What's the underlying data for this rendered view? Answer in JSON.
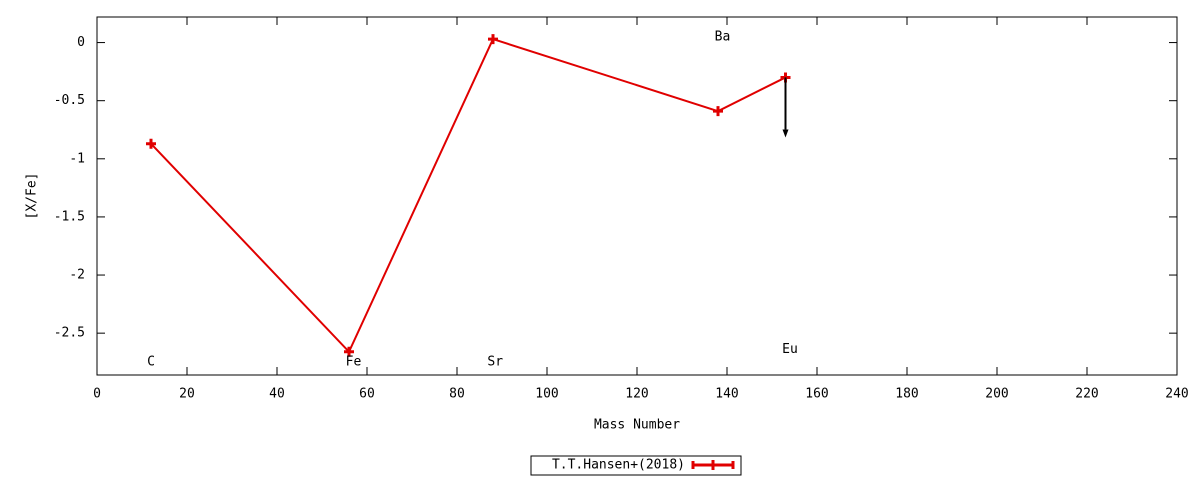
{
  "chart_data": {
    "type": "line",
    "xlabel": "Mass Number",
    "ylabel": "[X/Fe]",
    "xlim": [
      0,
      240
    ],
    "ylim": [
      -2.86,
      0.22
    ],
    "xticks": [
      0,
      20,
      40,
      60,
      80,
      100,
      120,
      140,
      160,
      180,
      200,
      220,
      240
    ],
    "yticks": [
      0,
      -0.5,
      -1,
      -1.5,
      -2,
      -2.5
    ],
    "legend": "bottom",
    "series": [
      {
        "name": "T.T.Hansen+(2018)",
        "color": "#e00000",
        "x": [
          12,
          56,
          88,
          138,
          153
        ],
        "values": [
          -0.87,
          -2.66,
          0.03,
          -0.59,
          -0.3
        ],
        "upper_limit": [
          false,
          false,
          false,
          false,
          true
        ]
      }
    ],
    "annotations": [
      {
        "text": "C",
        "x": 12,
        "y": -2.75
      },
      {
        "text": "Fe",
        "x": 57,
        "y": -2.75
      },
      {
        "text": "Sr",
        "x": 88.5,
        "y": -2.75
      },
      {
        "text": "Ba",
        "x": 139,
        "y": 0.05
      },
      {
        "text": "Eu",
        "x": 154,
        "y": -2.64
      }
    ]
  }
}
